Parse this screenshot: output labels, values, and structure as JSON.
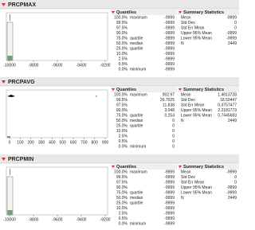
{
  "panels": [
    {
      "title": "PRCPMAX",
      "axis_labels": [
        "-10000",
        "-9800",
        "-9600",
        "-9400",
        "-9200"
      ],
      "quantiles_title": "Quantiles",
      "quantiles": [
        [
          "100.0%",
          "maximum",
          "-9999"
        ],
        [
          "99.5%",
          "",
          "-9999"
        ],
        [
          "97.5%",
          "",
          "-9999"
        ],
        [
          "90.0%",
          "",
          "-9999"
        ],
        [
          "75.0%",
          "quartile",
          "-9999"
        ],
        [
          "50.0%",
          "median",
          "-9999"
        ],
        [
          "25.0%",
          "quartile",
          "-9999"
        ],
        [
          "10.0%",
          "",
          "-9999"
        ],
        [
          "2.5%",
          "",
          "-9999"
        ],
        [
          "0.5%",
          "",
          "-9999"
        ],
        [
          "0.0%",
          "minimum",
          "-9999"
        ]
      ],
      "summary_title": "Summary Statistics",
      "summary": [
        [
          "Mean",
          "-9999"
        ],
        [
          "Std Dev",
          "0"
        ],
        [
          "Std Err Mean",
          "0"
        ],
        [
          "Upper 95% Mean",
          "-9999"
        ],
        [
          "Lower 95% Mean",
          "-9999"
        ],
        [
          "N",
          "2449"
        ]
      ]
    },
    {
      "title": "PRCPAVG",
      "axis_labels": [
        "0",
        "100",
        "200",
        "300",
        "400",
        "500",
        "600",
        "700",
        "800",
        "900"
      ],
      "quantiles_title": "Quantiles",
      "quantiles": [
        [
          "100.0%",
          "maximum",
          "902.97"
        ],
        [
          "99.5%",
          "",
          "26.7025"
        ],
        [
          "97.5%",
          "",
          "11.838"
        ],
        [
          "90.0%",
          "",
          "3.048"
        ],
        [
          "75.0%",
          "quartile",
          "0.254"
        ],
        [
          "50.0%",
          "median",
          "0"
        ],
        [
          "25.0%",
          "quartile",
          "0"
        ],
        [
          "10.0%",
          "",
          "0"
        ],
        [
          "2.5%",
          "",
          "0"
        ],
        [
          "0.5%",
          "",
          "0"
        ],
        [
          "0.0%",
          "minimum",
          "0"
        ]
      ],
      "summary_title": "Summary Statistics",
      "summary": [
        [
          "Mean",
          "1.4813728"
        ],
        [
          "Std Dev",
          "18.59447"
        ],
        [
          "Std Err Mean",
          "0.3757477"
        ],
        [
          "Upper 95% Mean",
          "2.2181773"
        ],
        [
          "Lower 95% Mean",
          "0.7445683"
        ],
        [
          "N",
          "2449"
        ]
      ]
    },
    {
      "title": "PRCPMIN",
      "axis_labels": [
        "-10000",
        "-9800",
        "-9600",
        "-9400",
        "-9200"
      ],
      "quantiles_title": "Quantiles",
      "quantiles": [
        [
          "100.0%",
          "maximum",
          "-9999"
        ],
        [
          "99.5%",
          "",
          "-9999"
        ],
        [
          "97.5%",
          "",
          "-9999"
        ],
        [
          "90.0%",
          "",
          "-9999"
        ],
        [
          "75.0%",
          "quartile",
          "-9999"
        ],
        [
          "50.0%",
          "median",
          "-9999"
        ],
        [
          "25.0%",
          "quartile",
          "-9999"
        ],
        [
          "10.0%",
          "",
          "-9999"
        ],
        [
          "2.5%",
          "",
          "-9999"
        ],
        [
          "0.5%",
          "",
          "-9999"
        ],
        [
          "0.0%",
          "minimum",
          "-9999"
        ]
      ],
      "summary_title": "Summary Statistics",
      "summary": [
        [
          "Mean",
          "-9999"
        ],
        [
          "Std Dev",
          "0"
        ],
        [
          "Std Err Mean",
          "0"
        ],
        [
          "Upper 95% Mean",
          "-9999"
        ],
        [
          "Lower 95% Mean",
          "-9999"
        ],
        [
          "N",
          "2449"
        ]
      ]
    }
  ]
}
